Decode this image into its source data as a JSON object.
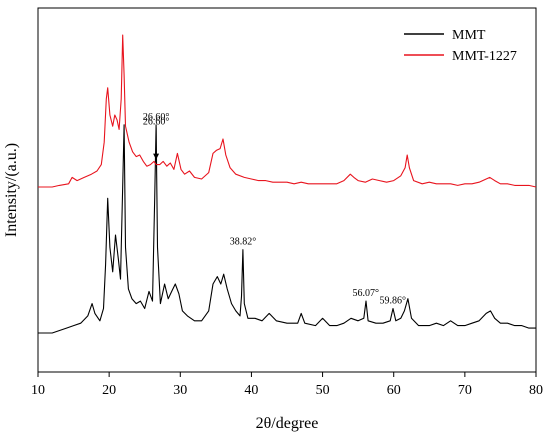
{
  "chart_data": {
    "type": "line",
    "xlabel": "2θ/degree",
    "ylabel": "Intensity/(a.u.)",
    "xlim": [
      10,
      80
    ],
    "x_ticks": [
      "10",
      "20",
      "30",
      "40",
      "50",
      "60",
      "70",
      "80"
    ],
    "grid": false,
    "legend_position": "top-right",
    "y_unit": "a.u. (offset traces)",
    "series": [
      {
        "name": "MMT",
        "color": "#000000",
        "points": [
          [
            10,
            0.0
          ],
          [
            12,
            0.0
          ],
          [
            14,
            0.02
          ],
          [
            15,
            0.03
          ],
          [
            16,
            0.04
          ],
          [
            17,
            0.07
          ],
          [
            17.6,
            0.12
          ],
          [
            18,
            0.08
          ],
          [
            18.7,
            0.05
          ],
          [
            19.2,
            0.1
          ],
          [
            19.5,
            0.28
          ],
          [
            19.8,
            0.55
          ],
          [
            20.1,
            0.35
          ],
          [
            20.5,
            0.25
          ],
          [
            20.9,
            0.4
          ],
          [
            21.3,
            0.3
          ],
          [
            21.6,
            0.22
          ],
          [
            21.9,
            0.6
          ],
          [
            22.1,
            0.85
          ],
          [
            22.3,
            0.35
          ],
          [
            22.7,
            0.18
          ],
          [
            23.2,
            0.14
          ],
          [
            23.8,
            0.12
          ],
          [
            24.4,
            0.13
          ],
          [
            25,
            0.1
          ],
          [
            25.6,
            0.17
          ],
          [
            26.1,
            0.13
          ],
          [
            26.4,
            0.55
          ],
          [
            26.6,
            0.85
          ],
          [
            26.8,
            0.35
          ],
          [
            27.2,
            0.12
          ],
          [
            27.8,
            0.2
          ],
          [
            28.3,
            0.14
          ],
          [
            28.8,
            0.17
          ],
          [
            29.3,
            0.2
          ],
          [
            29.8,
            0.16
          ],
          [
            30.3,
            0.09
          ],
          [
            31,
            0.07
          ],
          [
            32,
            0.05
          ],
          [
            33,
            0.05
          ],
          [
            34,
            0.09
          ],
          [
            34.6,
            0.2
          ],
          [
            35.2,
            0.23
          ],
          [
            35.7,
            0.2
          ],
          [
            36.1,
            0.24
          ],
          [
            36.6,
            0.18
          ],
          [
            37.2,
            0.12
          ],
          [
            37.8,
            0.09
          ],
          [
            38.4,
            0.07
          ],
          [
            38.6,
            0.15
          ],
          [
            38.8,
            0.34
          ],
          [
            39.0,
            0.12
          ],
          [
            39.5,
            0.06
          ],
          [
            40.5,
            0.06
          ],
          [
            41.5,
            0.05
          ],
          [
            42.5,
            0.08
          ],
          [
            43.5,
            0.05
          ],
          [
            45,
            0.04
          ],
          [
            46.5,
            0.04
          ],
          [
            47,
            0.08
          ],
          [
            47.5,
            0.04
          ],
          [
            49,
            0.03
          ],
          [
            50,
            0.06
          ],
          [
            51,
            0.03
          ],
          [
            52,
            0.03
          ],
          [
            53,
            0.04
          ],
          [
            54,
            0.06
          ],
          [
            55,
            0.05
          ],
          [
            55.8,
            0.06
          ],
          [
            56.1,
            0.13
          ],
          [
            56.4,
            0.05
          ],
          [
            57.5,
            0.04
          ],
          [
            58.5,
            0.04
          ],
          [
            59.5,
            0.05
          ],
          [
            59.9,
            0.1
          ],
          [
            60.3,
            0.05
          ],
          [
            61,
            0.06
          ],
          [
            61.5,
            0.09
          ],
          [
            62,
            0.14
          ],
          [
            62.5,
            0.06
          ],
          [
            63.5,
            0.03
          ],
          [
            65,
            0.03
          ],
          [
            66,
            0.04
          ],
          [
            67,
            0.03
          ],
          [
            68,
            0.05
          ],
          [
            69,
            0.03
          ],
          [
            70,
            0.03
          ],
          [
            71,
            0.04
          ],
          [
            72,
            0.05
          ],
          [
            73,
            0.08
          ],
          [
            73.6,
            0.09
          ],
          [
            74.2,
            0.06
          ],
          [
            75,
            0.04
          ],
          [
            76,
            0.04
          ],
          [
            77,
            0.03
          ],
          [
            78,
            0.03
          ],
          [
            79,
            0.02
          ],
          [
            80,
            0.02
          ]
        ]
      },
      {
        "name": "MMT-1227",
        "color": "#e8141e",
        "points": [
          [
            10,
            1.0
          ],
          [
            12,
            1.0
          ],
          [
            13,
            1.01
          ],
          [
            14.3,
            1.02
          ],
          [
            14.8,
            1.06
          ],
          [
            15.5,
            1.04
          ],
          [
            16.5,
            1.06
          ],
          [
            17.5,
            1.08
          ],
          [
            18.3,
            1.1
          ],
          [
            18.9,
            1.14
          ],
          [
            19.3,
            1.28
          ],
          [
            19.6,
            1.55
          ],
          [
            19.8,
            1.62
          ],
          [
            20.1,
            1.45
          ],
          [
            20.5,
            1.38
          ],
          [
            20.8,
            1.45
          ],
          [
            21.1,
            1.42
          ],
          [
            21.4,
            1.36
          ],
          [
            21.7,
            1.55
          ],
          [
            21.9,
            1.95
          ],
          [
            22.1,
            1.7
          ],
          [
            22.3,
            1.38
          ],
          [
            22.8,
            1.28
          ],
          [
            23.3,
            1.22
          ],
          [
            23.8,
            1.19
          ],
          [
            24.3,
            1.2
          ],
          [
            24.8,
            1.16
          ],
          [
            25.3,
            1.13
          ],
          [
            25.8,
            1.14
          ],
          [
            26.3,
            1.16
          ],
          [
            26.6,
            1.14
          ],
          [
            27.1,
            1.14
          ],
          [
            27.6,
            1.16
          ],
          [
            28.1,
            1.13
          ],
          [
            28.6,
            1.15
          ],
          [
            29.1,
            1.11
          ],
          [
            29.6,
            1.21
          ],
          [
            30.1,
            1.11
          ],
          [
            30.6,
            1.08
          ],
          [
            31.3,
            1.1
          ],
          [
            32,
            1.06
          ],
          [
            33,
            1.05
          ],
          [
            34,
            1.09
          ],
          [
            34.6,
            1.21
          ],
          [
            35.1,
            1.23
          ],
          [
            35.6,
            1.24
          ],
          [
            36.0,
            1.3
          ],
          [
            36.4,
            1.2
          ],
          [
            37,
            1.12
          ],
          [
            37.8,
            1.08
          ],
          [
            39,
            1.06
          ],
          [
            40,
            1.05
          ],
          [
            41,
            1.04
          ],
          [
            42,
            1.04
          ],
          [
            43,
            1.03
          ],
          [
            44,
            1.03
          ],
          [
            45,
            1.03
          ],
          [
            46,
            1.02
          ],
          [
            47,
            1.03
          ],
          [
            48,
            1.02
          ],
          [
            49,
            1.02
          ],
          [
            50,
            1.02
          ],
          [
            51,
            1.02
          ],
          [
            52,
            1.02
          ],
          [
            53,
            1.04
          ],
          [
            53.9,
            1.08
          ],
          [
            54.4,
            1.06
          ],
          [
            55,
            1.04
          ],
          [
            56,
            1.03
          ],
          [
            57,
            1.05
          ],
          [
            58,
            1.04
          ],
          [
            59,
            1.03
          ],
          [
            60,
            1.04
          ],
          [
            61,
            1.07
          ],
          [
            61.6,
            1.12
          ],
          [
            61.9,
            1.2
          ],
          [
            62.2,
            1.12
          ],
          [
            62.8,
            1.04
          ],
          [
            64,
            1.02
          ],
          [
            65,
            1.03
          ],
          [
            66,
            1.02
          ],
          [
            67,
            1.02
          ],
          [
            68,
            1.02
          ],
          [
            69,
            1.01
          ],
          [
            70,
            1.02
          ],
          [
            71,
            1.02
          ],
          [
            72,
            1.03
          ],
          [
            73,
            1.05
          ],
          [
            73.5,
            1.06
          ],
          [
            74.2,
            1.04
          ],
          [
            75,
            1.02
          ],
          [
            76,
            1.02
          ],
          [
            77,
            1.01
          ],
          [
            78,
            1.01
          ],
          [
            79,
            1.01
          ],
          [
            80,
            1.0
          ]
        ]
      }
    ],
    "annotations": [
      {
        "text": "26.60°",
        "x": 26.6,
        "series": "MMT-1227",
        "arrow": true
      },
      {
        "text": "26.60°",
        "x": 26.6,
        "series": "MMT",
        "arrow": false
      },
      {
        "text": "38.82°",
        "x": 38.82,
        "series": "MMT",
        "arrow": false
      },
      {
        "text": "56.07°",
        "x": 56.07,
        "series": "MMT",
        "arrow": false
      },
      {
        "text": "59.86°",
        "x": 59.86,
        "series": "MMT",
        "arrow": false
      }
    ]
  }
}
